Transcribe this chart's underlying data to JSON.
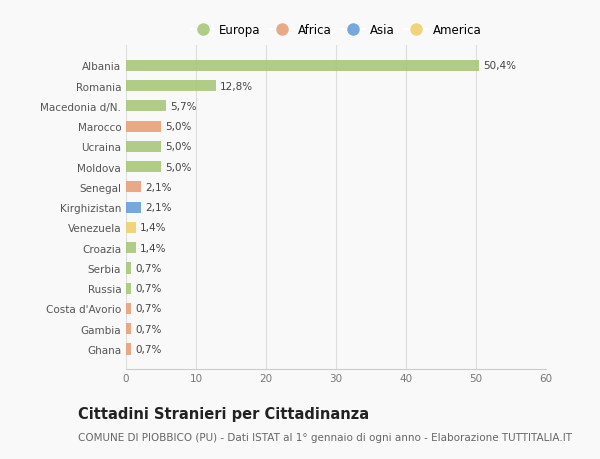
{
  "countries": [
    "Albania",
    "Romania",
    "Macedonia d/N.",
    "Marocco",
    "Ucraina",
    "Moldova",
    "Senegal",
    "Kirghizistan",
    "Venezuela",
    "Croazia",
    "Serbia",
    "Russia",
    "Costa d'Avorio",
    "Gambia",
    "Ghana"
  ],
  "values": [
    50.4,
    12.8,
    5.7,
    5.0,
    5.0,
    5.0,
    2.1,
    2.1,
    1.4,
    1.4,
    0.7,
    0.7,
    0.7,
    0.7,
    0.7
  ],
  "labels": [
    "50,4%",
    "12,8%",
    "5,7%",
    "5,0%",
    "5,0%",
    "5,0%",
    "2,1%",
    "2,1%",
    "1,4%",
    "1,4%",
    "0,7%",
    "0,7%",
    "0,7%",
    "0,7%",
    "0,7%"
  ],
  "continents": [
    "Europa",
    "Europa",
    "Europa",
    "Africa",
    "Europa",
    "Europa",
    "Africa",
    "Asia",
    "America",
    "Europa",
    "Europa",
    "Europa",
    "Africa",
    "Africa",
    "Africa"
  ],
  "continent_colors": {
    "Europa": "#a8c87a",
    "Africa": "#e8a07a",
    "Asia": "#6a9fd8",
    "America": "#f0d070"
  },
  "legend_order": [
    "Europa",
    "Africa",
    "Asia",
    "America"
  ],
  "xlim": [
    0,
    60
  ],
  "xticks": [
    0,
    10,
    20,
    30,
    40,
    50,
    60
  ],
  "background_color": "#f9f9f9",
  "title": "Cittadini Stranieri per Cittadinanza",
  "subtitle": "COMUNE DI PIOBBICO (PU) - Dati ISTAT al 1° gennaio di ogni anno - Elaborazione TUTTITALIA.IT",
  "title_fontsize": 10.5,
  "subtitle_fontsize": 7.5,
  "bar_height": 0.55,
  "label_fontsize": 7.5,
  "tick_fontsize": 7.5,
  "legend_fontsize": 8.5
}
